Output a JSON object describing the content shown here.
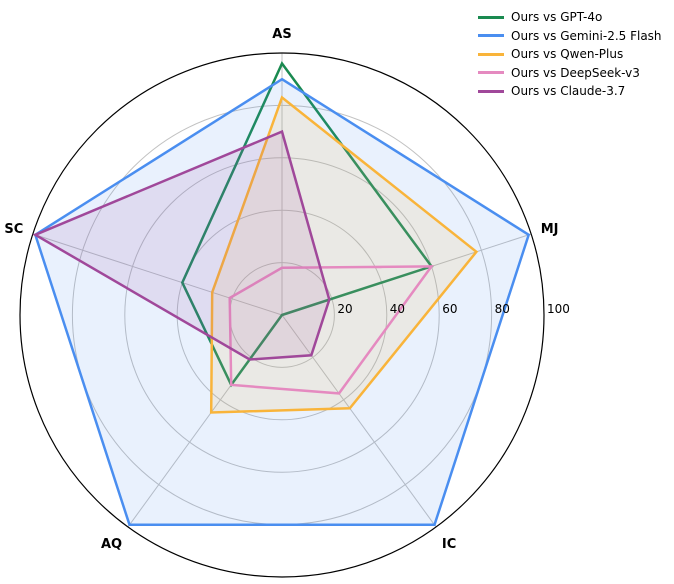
{
  "chart_data": {
    "type": "radar",
    "axes": [
      "AS",
      "MJ",
      "IC",
      "AQ",
      "SC"
    ],
    "r_ticks": [
      20,
      40,
      60,
      80,
      100
    ],
    "r_lim": [
      0,
      100
    ],
    "grid": true,
    "legend_position": "top-right",
    "series": [
      {
        "name": "Ours vs GPT-4o",
        "color": "#1a8a50",
        "fill": false,
        "values": [
          96,
          60,
          0,
          33,
          40
        ]
      },
      {
        "name": "Ours vs Gemini-2.5 Flash",
        "color": "#4a8ef0",
        "fill": true,
        "values": [
          90,
          99,
          99,
          99,
          99
        ]
      },
      {
        "name": "Ours vs Qwen-Plus",
        "color": "#f9b43a",
        "fill": true,
        "values": [
          83,
          78,
          44,
          46,
          28
        ]
      },
      {
        "name": "Ours vs DeepSeek-v3",
        "color": "#e58ac0",
        "fill": false,
        "values": [
          18,
          60,
          37,
          33,
          21
        ]
      },
      {
        "name": "Ours vs Claude-3.7",
        "color": "#a0489a",
        "fill": true,
        "values": [
          70,
          19,
          19,
          21,
          99
        ]
      }
    ]
  }
}
